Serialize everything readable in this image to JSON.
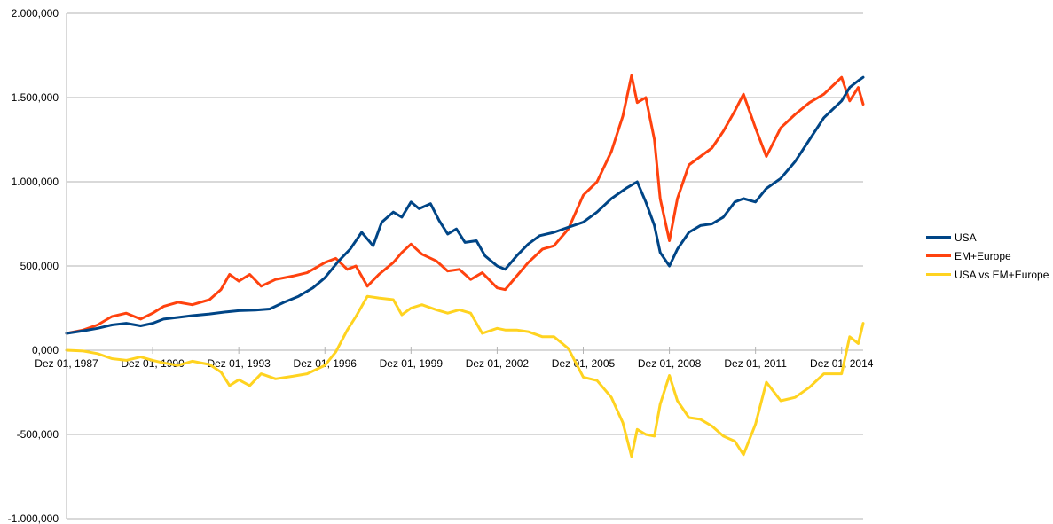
{
  "chart_data": {
    "type": "line",
    "title": "",
    "xlabel": "",
    "ylabel": "",
    "ylim": [
      -1000000,
      2000000
    ],
    "y_ticks": [
      {
        "value": 2000000,
        "label": "2.000,000"
      },
      {
        "value": 1500000,
        "label": "1.500,000"
      },
      {
        "value": 1000000,
        "label": "1.000,000"
      },
      {
        "value": 500000,
        "label": "500,000"
      },
      {
        "value": 0,
        "label": "0,000"
      },
      {
        "value": -500000,
        "label": "-500,000"
      },
      {
        "value": -1000000,
        "label": "-1.000,000"
      }
    ],
    "x_range": [
      1987.92,
      2015.67
    ],
    "x_ticks": [
      {
        "value": 1987.92,
        "label": "Dez 01, 1987"
      },
      {
        "value": 1990.92,
        "label": "Dez 01, 1990"
      },
      {
        "value": 1993.92,
        "label": "Dez 01, 1993"
      },
      {
        "value": 1996.92,
        "label": "Dez 01, 1996"
      },
      {
        "value": 1999.92,
        "label": "Dez 01, 1999"
      },
      {
        "value": 2002.92,
        "label": "Dez 01, 2002"
      },
      {
        "value": 2005.92,
        "label": "Dez 01, 2005"
      },
      {
        "value": 2008.92,
        "label": "Dez 01, 2008"
      },
      {
        "value": 2011.92,
        "label": "Dez 01, 2011"
      },
      {
        "value": 2014.92,
        "label": "Dez 01, 2014"
      }
    ],
    "grid": true,
    "legend_position": "right",
    "series": [
      {
        "name": "USA",
        "color": "#004586",
        "points": [
          [
            1987.92,
            100000
          ],
          [
            1988.5,
            115000
          ],
          [
            1989.0,
            130000
          ],
          [
            1989.5,
            150000
          ],
          [
            1990.0,
            160000
          ],
          [
            1990.5,
            145000
          ],
          [
            1990.92,
            160000
          ],
          [
            1991.3,
            185000
          ],
          [
            1991.8,
            195000
          ],
          [
            1992.3,
            205000
          ],
          [
            1992.9,
            215000
          ],
          [
            1993.5,
            228000
          ],
          [
            1993.92,
            235000
          ],
          [
            1994.5,
            238000
          ],
          [
            1995.0,
            245000
          ],
          [
            1995.5,
            285000
          ],
          [
            1996.0,
            320000
          ],
          [
            1996.5,
            370000
          ],
          [
            1996.92,
            430000
          ],
          [
            1997.4,
            530000
          ],
          [
            1997.8,
            600000
          ],
          [
            1998.2,
            700000
          ],
          [
            1998.6,
            620000
          ],
          [
            1998.9,
            760000
          ],
          [
            1999.3,
            820000
          ],
          [
            1999.6,
            790000
          ],
          [
            1999.92,
            880000
          ],
          [
            2000.2,
            840000
          ],
          [
            2000.6,
            870000
          ],
          [
            2000.9,
            770000
          ],
          [
            2001.2,
            690000
          ],
          [
            2001.5,
            720000
          ],
          [
            2001.8,
            640000
          ],
          [
            2002.2,
            650000
          ],
          [
            2002.5,
            560000
          ],
          [
            2002.92,
            500000
          ],
          [
            2003.2,
            480000
          ],
          [
            2003.6,
            560000
          ],
          [
            2004.0,
            630000
          ],
          [
            2004.4,
            680000
          ],
          [
            2004.9,
            700000
          ],
          [
            2005.4,
            730000
          ],
          [
            2005.92,
            760000
          ],
          [
            2006.4,
            820000
          ],
          [
            2006.9,
            900000
          ],
          [
            2007.4,
            960000
          ],
          [
            2007.8,
            1000000
          ],
          [
            2008.1,
            880000
          ],
          [
            2008.4,
            740000
          ],
          [
            2008.6,
            580000
          ],
          [
            2008.92,
            500000
          ],
          [
            2009.2,
            600000
          ],
          [
            2009.6,
            700000
          ],
          [
            2010.0,
            740000
          ],
          [
            2010.4,
            750000
          ],
          [
            2010.8,
            790000
          ],
          [
            2011.2,
            880000
          ],
          [
            2011.5,
            900000
          ],
          [
            2011.92,
            880000
          ],
          [
            2012.3,
            960000
          ],
          [
            2012.8,
            1020000
          ],
          [
            2013.3,
            1120000
          ],
          [
            2013.8,
            1250000
          ],
          [
            2014.3,
            1380000
          ],
          [
            2014.92,
            1480000
          ],
          [
            2015.2,
            1560000
          ],
          [
            2015.5,
            1600000
          ],
          [
            2015.67,
            1620000
          ]
        ]
      },
      {
        "name": "EM+Europe",
        "color": "#ff420e",
        "points": [
          [
            1987.92,
            100000
          ],
          [
            1988.5,
            120000
          ],
          [
            1989.0,
            150000
          ],
          [
            1989.5,
            200000
          ],
          [
            1990.0,
            220000
          ],
          [
            1990.5,
            185000
          ],
          [
            1990.92,
            220000
          ],
          [
            1991.3,
            260000
          ],
          [
            1991.8,
            285000
          ],
          [
            1992.3,
            270000
          ],
          [
            1992.9,
            300000
          ],
          [
            1993.3,
            360000
          ],
          [
            1993.6,
            450000
          ],
          [
            1993.92,
            410000
          ],
          [
            1994.3,
            450000
          ],
          [
            1994.7,
            380000
          ],
          [
            1995.2,
            420000
          ],
          [
            1995.8,
            440000
          ],
          [
            1996.3,
            460000
          ],
          [
            1996.92,
            520000
          ],
          [
            1997.3,
            545000
          ],
          [
            1997.7,
            480000
          ],
          [
            1998.0,
            500000
          ],
          [
            1998.4,
            380000
          ],
          [
            1998.8,
            450000
          ],
          [
            1999.3,
            520000
          ],
          [
            1999.6,
            580000
          ],
          [
            1999.92,
            630000
          ],
          [
            2000.3,
            570000
          ],
          [
            2000.8,
            530000
          ],
          [
            2001.2,
            470000
          ],
          [
            2001.6,
            480000
          ],
          [
            2002.0,
            420000
          ],
          [
            2002.4,
            460000
          ],
          [
            2002.92,
            370000
          ],
          [
            2003.2,
            360000
          ],
          [
            2003.6,
            440000
          ],
          [
            2004.0,
            520000
          ],
          [
            2004.5,
            600000
          ],
          [
            2004.9,
            620000
          ],
          [
            2005.4,
            720000
          ],
          [
            2005.92,
            920000
          ],
          [
            2006.4,
            1000000
          ],
          [
            2006.9,
            1180000
          ],
          [
            2007.3,
            1390000
          ],
          [
            2007.6,
            1630000
          ],
          [
            2007.8,
            1470000
          ],
          [
            2008.1,
            1500000
          ],
          [
            2008.4,
            1250000
          ],
          [
            2008.6,
            900000
          ],
          [
            2008.92,
            650000
          ],
          [
            2009.2,
            900000
          ],
          [
            2009.6,
            1100000
          ],
          [
            2010.0,
            1150000
          ],
          [
            2010.4,
            1200000
          ],
          [
            2010.8,
            1300000
          ],
          [
            2011.2,
            1420000
          ],
          [
            2011.5,
            1520000
          ],
          [
            2011.92,
            1320000
          ],
          [
            2012.3,
            1150000
          ],
          [
            2012.8,
            1320000
          ],
          [
            2013.3,
            1400000
          ],
          [
            2013.8,
            1470000
          ],
          [
            2014.3,
            1520000
          ],
          [
            2014.92,
            1620000
          ],
          [
            2015.2,
            1480000
          ],
          [
            2015.5,
            1560000
          ],
          [
            2015.67,
            1460000
          ]
        ]
      },
      {
        "name": "USA vs EM+Europe",
        "color": "#ffd320",
        "points": [
          [
            1987.92,
            0
          ],
          [
            1988.5,
            -5000
          ],
          [
            1989.0,
            -20000
          ],
          [
            1989.5,
            -50000
          ],
          [
            1990.0,
            -60000
          ],
          [
            1990.5,
            -40000
          ],
          [
            1990.92,
            -60000
          ],
          [
            1991.3,
            -75000
          ],
          [
            1991.8,
            -90000
          ],
          [
            1992.3,
            -65000
          ],
          [
            1992.9,
            -85000
          ],
          [
            1993.3,
            -130000
          ],
          [
            1993.6,
            -210000
          ],
          [
            1993.92,
            -175000
          ],
          [
            1994.3,
            -210000
          ],
          [
            1994.7,
            -140000
          ],
          [
            1995.2,
            -170000
          ],
          [
            1995.8,
            -155000
          ],
          [
            1996.3,
            -140000
          ],
          [
            1996.92,
            -90000
          ],
          [
            1997.3,
            -10000
          ],
          [
            1997.7,
            120000
          ],
          [
            1998.0,
            200000
          ],
          [
            1998.4,
            320000
          ],
          [
            1998.8,
            310000
          ],
          [
            1999.3,
            300000
          ],
          [
            1999.6,
            210000
          ],
          [
            1999.92,
            250000
          ],
          [
            2000.3,
            270000
          ],
          [
            2000.8,
            240000
          ],
          [
            2001.2,
            220000
          ],
          [
            2001.6,
            240000
          ],
          [
            2002.0,
            220000
          ],
          [
            2002.4,
            100000
          ],
          [
            2002.92,
            130000
          ],
          [
            2003.2,
            120000
          ],
          [
            2003.6,
            120000
          ],
          [
            2004.0,
            110000
          ],
          [
            2004.5,
            80000
          ],
          [
            2004.9,
            80000
          ],
          [
            2005.4,
            10000
          ],
          [
            2005.92,
            -160000
          ],
          [
            2006.4,
            -180000
          ],
          [
            2006.9,
            -280000
          ],
          [
            2007.3,
            -430000
          ],
          [
            2007.6,
            -630000
          ],
          [
            2007.8,
            -470000
          ],
          [
            2008.1,
            -500000
          ],
          [
            2008.4,
            -510000
          ],
          [
            2008.6,
            -320000
          ],
          [
            2008.92,
            -150000
          ],
          [
            2009.2,
            -300000
          ],
          [
            2009.6,
            -400000
          ],
          [
            2010.0,
            -410000
          ],
          [
            2010.4,
            -450000
          ],
          [
            2010.8,
            -510000
          ],
          [
            2011.2,
            -540000
          ],
          [
            2011.5,
            -620000
          ],
          [
            2011.92,
            -440000
          ],
          [
            2012.3,
            -190000
          ],
          [
            2012.8,
            -300000
          ],
          [
            2013.3,
            -280000
          ],
          [
            2013.8,
            -220000
          ],
          [
            2014.3,
            -140000
          ],
          [
            2014.92,
            -140000
          ],
          [
            2015.2,
            80000
          ],
          [
            2015.5,
            40000
          ],
          [
            2015.67,
            160000
          ]
        ]
      }
    ]
  }
}
